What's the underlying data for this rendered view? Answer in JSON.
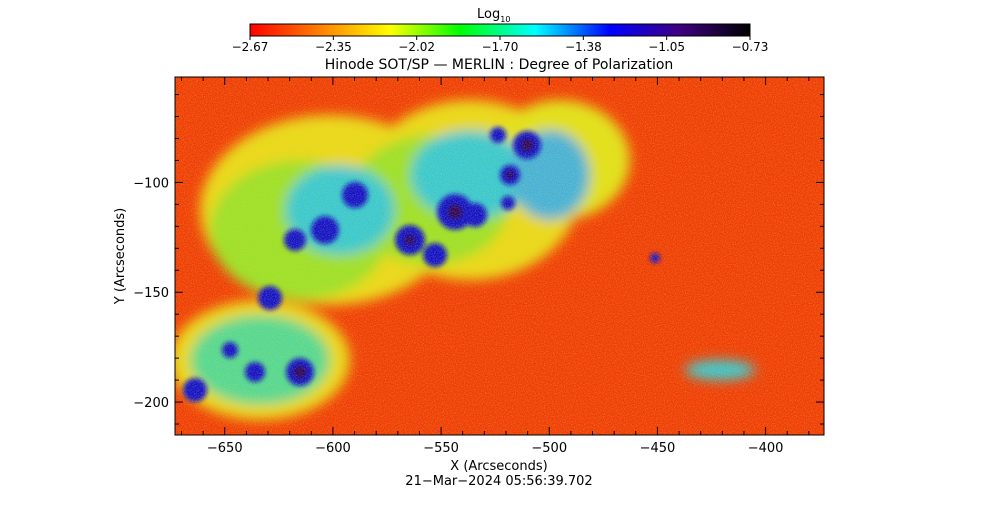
{
  "colorbar": {
    "label_main": "Log",
    "label_sub": "10",
    "tick_labels": [
      "-2.67",
      "-2.35",
      "-2.02",
      "-1.70",
      "-1.38",
      "-1.05",
      "-0.73"
    ],
    "range": [
      -2.67,
      -0.73
    ],
    "colormap": [
      "#ff0000",
      "#ff8000",
      "#ffff00",
      "#00ff00",
      "#00ffff",
      "#0000ff",
      "#400080",
      "#000000"
    ]
  },
  "plot": {
    "title": "Hinode SOT/SP — MERLIN : Degree of Polarization",
    "xlabel": "X (Arcseconds)",
    "ylabel": "Y (Arcseconds)",
    "xlim": [
      -673,
      -373
    ],
    "ylim": [
      -215,
      -52
    ],
    "x_ticks": [
      {
        "value": -650,
        "label": "−650"
      },
      {
        "value": -600,
        "label": "−600"
      },
      {
        "value": -550,
        "label": "−550"
      },
      {
        "value": -500,
        "label": "−500"
      },
      {
        "value": -450,
        "label": "−450"
      },
      {
        "value": -400,
        "label": "−400"
      }
    ],
    "y_ticks": [
      {
        "value": -100,
        "label": "−100"
      },
      {
        "value": -150,
        "label": "−150"
      },
      {
        "value": -200,
        "label": "−200"
      }
    ],
    "timestamp": "21−Mar−2024 05:56:39.702"
  },
  "colors": {
    "background_field": "#ee3a10",
    "plage": "#c8f000",
    "strong": "#1010d8",
    "peak": "#2a0060"
  }
}
